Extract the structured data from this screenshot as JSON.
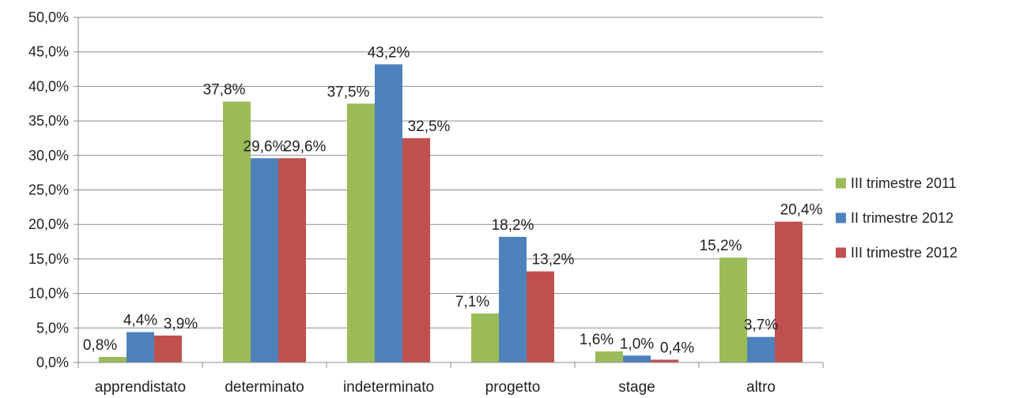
{
  "chart_data": {
    "type": "bar",
    "title": "",
    "xlabel": "",
    "ylabel": "",
    "categories": [
      "apprendistato",
      "determinato",
      "indeterminato",
      "progetto",
      "stage",
      "altro"
    ],
    "series": [
      {
        "name": "III trimestre 2011",
        "color": "#9bbb59",
        "values": [
          0.8,
          37.8,
          37.5,
          7.1,
          1.6,
          15.2
        ],
        "labels": [
          "0,8%",
          "37,8%",
          "37,5%",
          "7,1%",
          "1,6%",
          "15,2%"
        ]
      },
      {
        "name": "II trimestre 2012",
        "color": "#4f81bd",
        "values": [
          4.4,
          29.6,
          43.2,
          18.2,
          1.0,
          3.7
        ],
        "labels": [
          "4,4%",
          "29,6%",
          "43,2%",
          "18,2%",
          "1,0%",
          "3,7%"
        ]
      },
      {
        "name": "III trimestre 2012",
        "color": "#c0504d",
        "values": [
          3.9,
          29.6,
          32.5,
          13.2,
          0.4,
          20.4
        ],
        "labels": [
          "3,9%",
          "29,6%",
          "32,5%",
          "13,2%",
          "0,4%",
          "20,4%"
        ]
      }
    ],
    "ylim": [
      0,
      50
    ],
    "yticks": [
      0,
      5,
      10,
      15,
      20,
      25,
      30,
      35,
      40,
      45,
      50
    ],
    "ytick_labels": [
      "0,0%",
      "5,0%",
      "10,0%",
      "15,0%",
      "20,0%",
      "25,0%",
      "30,0%",
      "35,0%",
      "40,0%",
      "45,0%",
      "50,0%"
    ],
    "grid": true,
    "legend_position": "right"
  }
}
